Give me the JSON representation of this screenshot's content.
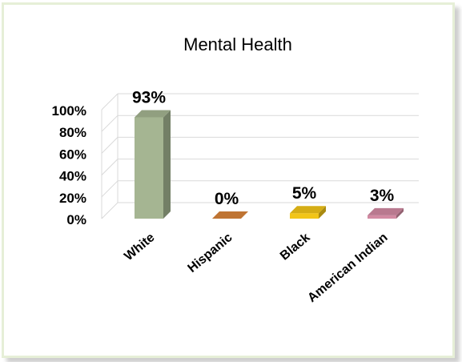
{
  "chart_data": {
    "type": "bar",
    "title": "Mental Health",
    "categories": [
      "White",
      "Hispanic",
      "Black",
      "American Indian"
    ],
    "values": [
      93,
      0,
      5,
      3
    ],
    "data_labels": [
      "93%",
      "0%",
      "5%",
      "3%"
    ],
    "yticks": [
      "0%",
      "20%",
      "40%",
      "60%",
      "80%",
      "100%"
    ],
    "ylim": [
      0,
      100
    ],
    "grid": true,
    "legend": "none",
    "colors": [
      "#a5b592",
      "#d9843a",
      "#f2c518",
      "#d28aa2"
    ]
  }
}
